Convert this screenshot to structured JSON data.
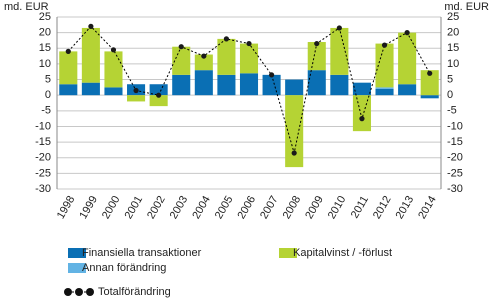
{
  "chart_data": {
    "type": "stacked-bar-line",
    "y_label": "md. EUR",
    "categories": [
      "1998",
      "1999",
      "2000",
      "2001",
      "2002",
      "2003",
      "2004",
      "2005",
      "2006",
      "2007",
      "2008",
      "2009",
      "2010",
      "2011",
      "2012",
      "2013",
      "2014"
    ],
    "series": [
      {
        "name": "Finansiella transaktioner",
        "color": "#0a6fb4",
        "kind": "bar",
        "values": [
          3.5,
          4,
          2.5,
          3.5,
          3.5,
          6.5,
          8,
          6.5,
          7,
          6.5,
          5,
          8,
          6.5,
          4,
          2,
          3.5,
          -1
        ]
      },
      {
        "name": "Annan förändring",
        "color": "#62b3e4",
        "kind": "bar",
        "values": [
          0,
          0,
          0,
          0,
          0,
          0,
          0,
          0,
          0,
          0,
          0,
          0,
          0,
          0,
          0.5,
          0,
          0
        ]
      },
      {
        "name": "Kapitalvinst / -förlust",
        "color": "#b5d334",
        "kind": "bar",
        "values": [
          10.5,
          17.5,
          11.5,
          -2,
          -3.5,
          9,
          5,
          11.5,
          9.5,
          0,
          -23,
          9,
          15,
          -11.5,
          14,
          16.5,
          8
        ]
      },
      {
        "name": "Totalförändring",
        "color": "#000000",
        "kind": "line",
        "values": [
          14,
          22,
          14.5,
          1.5,
          0,
          15.5,
          12.5,
          18,
          16.5,
          6.5,
          -18.5,
          16.5,
          21.5,
          -7.5,
          16,
          20,
          7
        ]
      }
    ],
    "ylim": [
      -30,
      25
    ],
    "yticks": [
      -30,
      -25,
      -20,
      -15,
      -10,
      -5,
      0,
      5,
      10,
      15,
      20,
      25
    ],
    "grid": true
  }
}
